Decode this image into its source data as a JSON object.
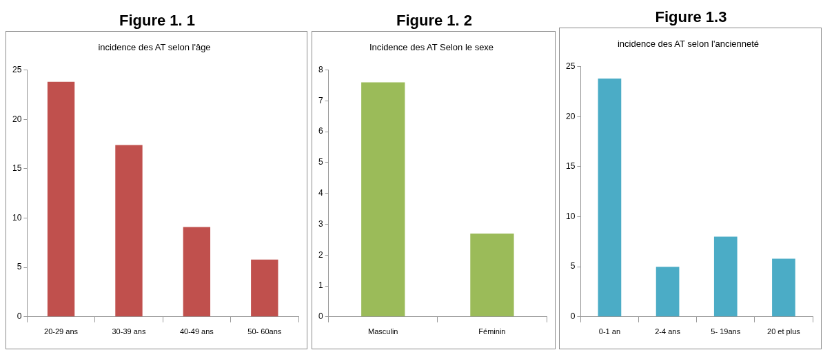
{
  "chart_data": [
    {
      "type": "bar",
      "annotations": [
        "Figure 1. 1"
      ],
      "title": "incidence des AT selon l'âge",
      "categories": [
        "20-29 ans",
        "30-39 ans",
        "40-49 ans",
        "50- 60ans"
      ],
      "values": [
        23.8,
        17.4,
        9.1,
        5.8
      ],
      "color": "#c0504d",
      "ylim": [
        0,
        25
      ],
      "yticks": [
        0,
        5,
        10,
        15,
        20,
        25
      ],
      "grid": false,
      "legend": false
    },
    {
      "type": "bar",
      "annotations": [
        "Figure 1. 2"
      ],
      "title": "Incidence des AT Selon le sexe",
      "categories": [
        "Masculin",
        "Féminin"
      ],
      "values": [
        7.6,
        2.7
      ],
      "color": "#9bbb59",
      "ylim": [
        0,
        8
      ],
      "yticks": [
        0,
        1,
        2,
        3,
        4,
        5,
        6,
        7,
        8
      ],
      "grid": false,
      "legend": false
    },
    {
      "type": "bar",
      "annotations": [
        "Figure 1.3"
      ],
      "title": "incidence des AT selon l'ancienneté",
      "categories": [
        "0-1 an",
        "2-4 ans",
        "5- 19ans",
        "20 et plus"
      ],
      "values": [
        23.8,
        5.0,
        8.0,
        5.8
      ],
      "color": "#4bacc6",
      "ylim": [
        0,
        25
      ],
      "yticks": [
        0,
        5,
        10,
        15,
        20,
        25
      ],
      "grid": false,
      "legend": false
    }
  ]
}
